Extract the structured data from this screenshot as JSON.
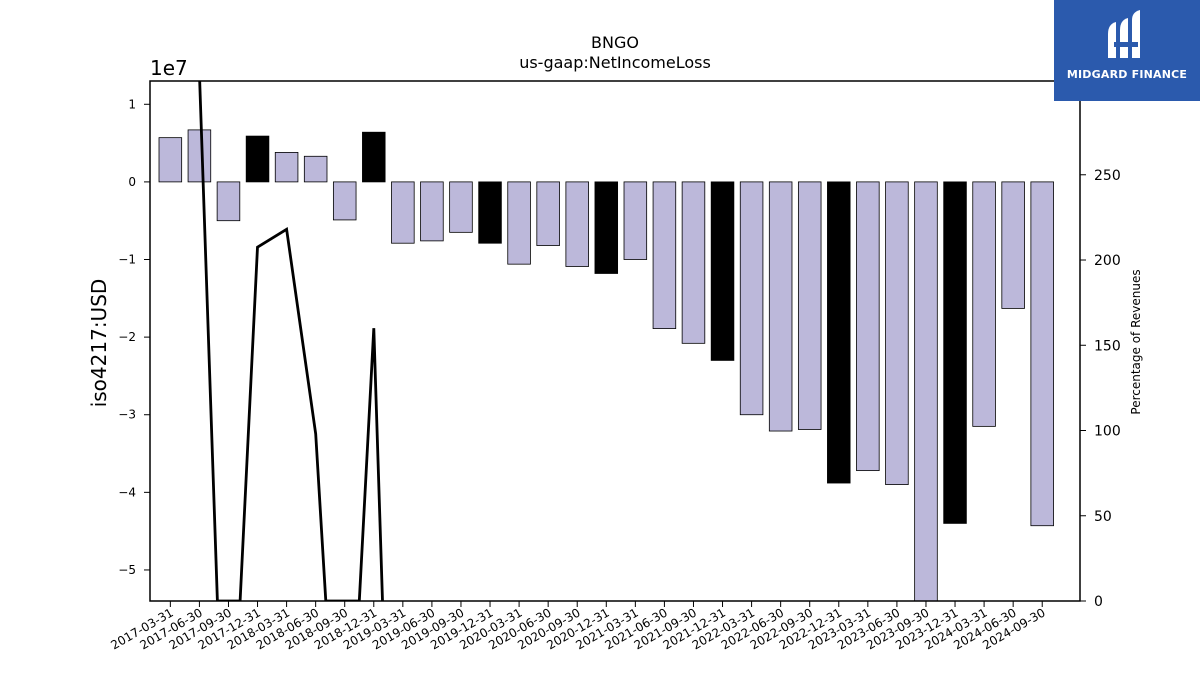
{
  "chart_data": {
    "type": "bar",
    "title": "BNGO",
    "subtitle": "us-gaap:NetIncomeLoss",
    "ylabel": "iso4217:USD",
    "y2label": "Percentage of Revenues",
    "offset_label": "1e7",
    "ylim": [
      -5.4,
      1.3
    ],
    "y2lim": [
      0,
      305
    ],
    "yticks": [
      "1",
      "0",
      "−1",
      "−2",
      "−3",
      "−4",
      "−5"
    ],
    "yticks_values": [
      1,
      0,
      -1,
      -2,
      -3,
      -4,
      -5
    ],
    "y2ticks": [
      "0",
      "50",
      "100",
      "150",
      "200",
      "250"
    ],
    "y2ticks_values": [
      0,
      50,
      100,
      150,
      200,
      250
    ],
    "grid": false,
    "categories": [
      "2017-03-31",
      "2017-06-30",
      "2017-09-30",
      "2017-12-31",
      "2018-03-31",
      "2018-06-30",
      "2018-09-30",
      "2018-12-31",
      "2019-03-31",
      "2019-06-30",
      "2019-09-30",
      "2019-12-31",
      "2020-03-31",
      "2020-06-30",
      "2020-09-30",
      "2020-12-31",
      "2021-03-31",
      "2021-06-30",
      "2021-09-30",
      "2021-12-31",
      "2022-03-31",
      "2022-06-30",
      "2022-09-30",
      "2022-12-31",
      "2023-03-31",
      "2023-06-30",
      "2023-09-30",
      "2023-12-31",
      "2024-03-31",
      "2024-06-30",
      "2024-09-30"
    ],
    "series": [
      {
        "type": "bar",
        "values": [
          0.57,
          0.67,
          -0.5,
          0.59,
          0.38,
          0.33,
          -0.49,
          0.64,
          -0.79,
          -0.76,
          -0.65,
          -0.79,
          -1.06,
          -0.82,
          -1.09,
          -1.18,
          -1.0,
          -1.89,
          -2.08,
          -2.3,
          -3.0,
          -3.21,
          -3.19,
          -3.88,
          -3.72,
          -3.9,
          -5.5,
          -4.4,
          -3.15,
          -1.63,
          -4.43
        ],
        "colors": [
          "#bcb8da",
          "#bcb8da",
          "#bcb8da",
          "#000000",
          "#bcb8da",
          "#bcb8da",
          "#bcb8da",
          "#000000",
          "#bcb8da",
          "#bcb8da",
          "#bcb8da",
          "#000000",
          "#bcb8da",
          "#bcb8da",
          "#bcb8da",
          "#000000",
          "#bcb8da",
          "#bcb8da",
          "#bcb8da",
          "#000000",
          "#bcb8da",
          "#bcb8da",
          "#bcb8da",
          "#000000",
          "#bcb8da",
          "#bcb8da",
          "#bcb8da",
          "#000000",
          "#bcb8da",
          "#bcb8da",
          "#bcb8da"
        ]
      },
      {
        "type": "line",
        "axis": "right",
        "color": "#000000",
        "points": [
          [
            1,
            310
          ],
          [
            1.62,
            0
          ],
          [
            2.4,
            0
          ],
          [
            3,
            207.5
          ],
          [
            4,
            218
          ],
          [
            5,
            98
          ],
          [
            5.35,
            0
          ],
          [
            6.5,
            0
          ],
          [
            7,
            160
          ],
          [
            7.3,
            0
          ]
        ]
      }
    ]
  },
  "logo": {
    "text": "MIDGARD FINANCE",
    "icon": "midgard-logo-icon",
    "background": "#2b5aad"
  }
}
